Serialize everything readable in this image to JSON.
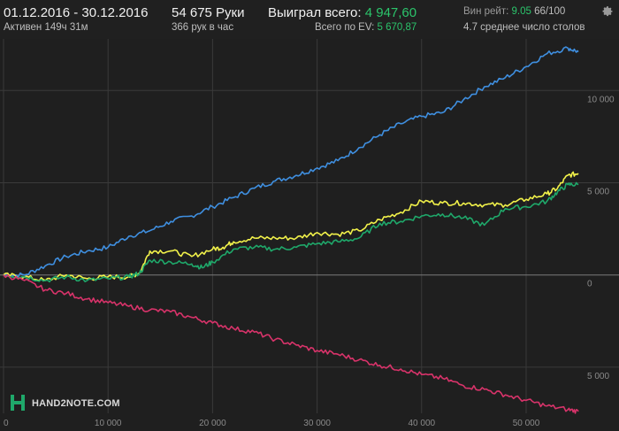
{
  "header": {
    "date_range": "01.12.2016 - 30.12.2016",
    "active_time": "Активен 149ч 31м",
    "hands": "54 675 Руки",
    "hands_per_hour": "366 рук в час",
    "won_label": "Выиграл всего:",
    "won_value": "4 947,60",
    "ev_label": "Всего по EV:",
    "ev_value": "5 670,87",
    "winrate_label": "Вин рейт:",
    "winrate_value": "9.05",
    "winrate_bb": "66/100",
    "avg_tables": "4.7 среднее число столов"
  },
  "logo_text": "HAND2NOTE.COM",
  "colors": {
    "background": "#1f1f1f",
    "blue": "#3f8fe0",
    "yellow": "#f2f24a",
    "green": "#1fa86a",
    "red": "#d8336a",
    "grid": "#3a3a3a",
    "accent_green": "#2bc46b"
  },
  "chart_data": {
    "type": "line",
    "xlabel": "",
    "ylabel": "",
    "xlim": [
      0,
      55500
    ],
    "ylim": [
      -7500,
      12700
    ],
    "x_ticks": [
      0,
      10000,
      20000,
      30000,
      40000,
      50000
    ],
    "x_tick_labels": [
      "0",
      "10 000",
      "20 000",
      "30 000",
      "40 000",
      "50 000"
    ],
    "y_ticks": [
      10000,
      5000,
      0,
      -5000
    ],
    "y_tick_labels": [
      "10 000",
      "5 000",
      "0",
      "5 000"
    ],
    "series": [
      {
        "color": "#3f8fe0",
        "points": [
          [
            0,
            0
          ],
          [
            2000,
            0
          ],
          [
            4000,
            500
          ],
          [
            6000,
            1000
          ],
          [
            8000,
            1300
          ],
          [
            10000,
            1500
          ],
          [
            12000,
            2100
          ],
          [
            14000,
            2400
          ],
          [
            16000,
            2900
          ],
          [
            18000,
            3200
          ],
          [
            20000,
            3700
          ],
          [
            22000,
            4200
          ],
          [
            24000,
            4700
          ],
          [
            26000,
            5100
          ],
          [
            28000,
            5400
          ],
          [
            30000,
            5800
          ],
          [
            32000,
            6200
          ],
          [
            34000,
            6900
          ],
          [
            36000,
            7600
          ],
          [
            38000,
            8200
          ],
          [
            40000,
            8600
          ],
          [
            42000,
            8800
          ],
          [
            44000,
            9500
          ],
          [
            46000,
            10200
          ],
          [
            48000,
            10700
          ],
          [
            50000,
            11300
          ],
          [
            52000,
            12000
          ],
          [
            54000,
            12300
          ],
          [
            55000,
            12100
          ]
        ]
      },
      {
        "color": "#f2f24a",
        "points": [
          [
            0,
            0
          ],
          [
            2000,
            -100
          ],
          [
            4000,
            -300
          ],
          [
            6000,
            0
          ],
          [
            8000,
            -200
          ],
          [
            10000,
            -100
          ],
          [
            12000,
            -100
          ],
          [
            13000,
            100
          ],
          [
            14000,
            1300
          ],
          [
            16000,
            1300
          ],
          [
            18000,
            1000
          ],
          [
            20000,
            1400
          ],
          [
            21000,
            1500
          ],
          [
            22000,
            1800
          ],
          [
            24000,
            2000
          ],
          [
            26000,
            2000
          ],
          [
            28000,
            2000
          ],
          [
            30000,
            2300
          ],
          [
            32000,
            2200
          ],
          [
            34000,
            2400
          ],
          [
            36000,
            3000
          ],
          [
            38000,
            3400
          ],
          [
            40000,
            4000
          ],
          [
            42000,
            3900
          ],
          [
            44000,
            3900
          ],
          [
            46000,
            3800
          ],
          [
            48000,
            3800
          ],
          [
            50000,
            4100
          ],
          [
            52000,
            4400
          ],
          [
            53000,
            4700
          ],
          [
            54000,
            5400
          ],
          [
            55000,
            5500
          ]
        ]
      },
      {
        "color": "#1fa86a",
        "points": [
          [
            0,
            0
          ],
          [
            2000,
            -100
          ],
          [
            4000,
            -300
          ],
          [
            6000,
            -100
          ],
          [
            8000,
            -300
          ],
          [
            10000,
            -200
          ],
          [
            12000,
            -100
          ],
          [
            13000,
            100
          ],
          [
            14000,
            800
          ],
          [
            16000,
            700
          ],
          [
            18000,
            600
          ],
          [
            19000,
            400
          ],
          [
            20000,
            700
          ],
          [
            22000,
            1400
          ],
          [
            24000,
            1500
          ],
          [
            26000,
            1400
          ],
          [
            28000,
            1500
          ],
          [
            30000,
            1700
          ],
          [
            32000,
            1800
          ],
          [
            34000,
            2000
          ],
          [
            36000,
            2800
          ],
          [
            38000,
            2900
          ],
          [
            40000,
            3200
          ],
          [
            42000,
            3300
          ],
          [
            44000,
            3100
          ],
          [
            46000,
            2700
          ],
          [
            48000,
            3600
          ],
          [
            50000,
            3700
          ],
          [
            52000,
            4000
          ],
          [
            53000,
            4500
          ],
          [
            54000,
            4900
          ],
          [
            55000,
            4900
          ]
        ]
      },
      {
        "color": "#d8336a",
        "points": [
          [
            0,
            0
          ],
          [
            2000,
            -300
          ],
          [
            4000,
            -800
          ],
          [
            6000,
            -1000
          ],
          [
            8000,
            -1300
          ],
          [
            10000,
            -1500
          ],
          [
            12000,
            -1700
          ],
          [
            14000,
            -1900
          ],
          [
            16000,
            -2000
          ],
          [
            18000,
            -2300
          ],
          [
            20000,
            -2600
          ],
          [
            22000,
            -2900
          ],
          [
            24000,
            -3100
          ],
          [
            26000,
            -3500
          ],
          [
            28000,
            -3800
          ],
          [
            30000,
            -4100
          ],
          [
            32000,
            -4300
          ],
          [
            34000,
            -4600
          ],
          [
            36000,
            -4900
          ],
          [
            38000,
            -5100
          ],
          [
            40000,
            -5400
          ],
          [
            42000,
            -5600
          ],
          [
            44000,
            -6000
          ],
          [
            46000,
            -6200
          ],
          [
            48000,
            -6500
          ],
          [
            50000,
            -6800
          ],
          [
            52000,
            -7100
          ],
          [
            54000,
            -7300
          ],
          [
            55000,
            -7400
          ]
        ]
      }
    ],
    "grid": true
  }
}
